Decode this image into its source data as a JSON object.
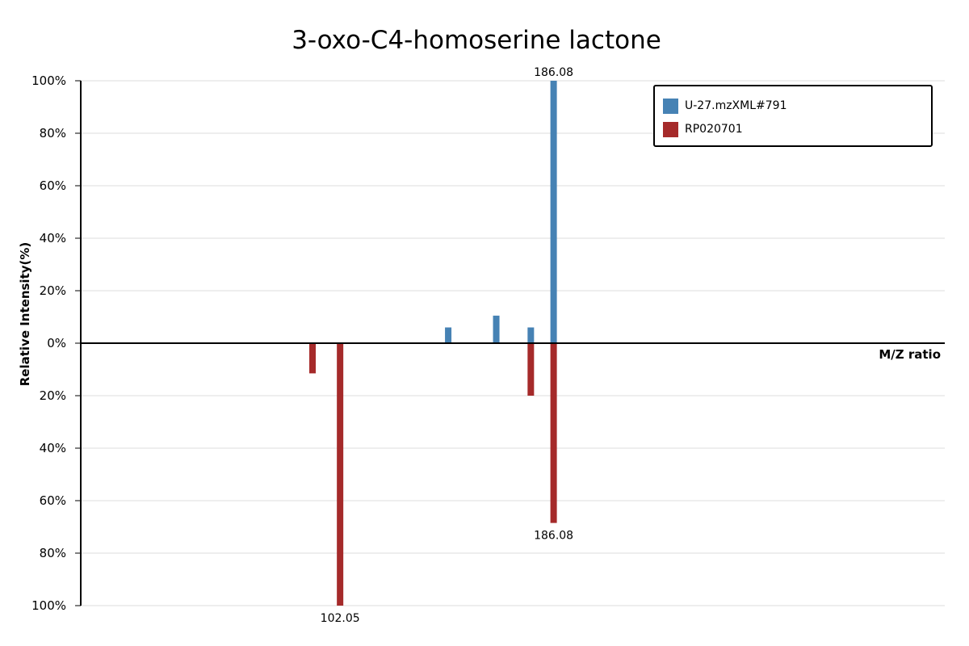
{
  "chart_data": {
    "type": "bar",
    "subtype": "mirror-mass-spectrum",
    "title": "3-oxo-C4-homoserine lactone",
    "xlabel": "M/Z ratio",
    "ylabel": "Relative Intensity(%)",
    "y_tick_labels_top": [
      "100%",
      "80%",
      "60%",
      "40%",
      "20%",
      "0%"
    ],
    "y_tick_labels_bottom": [
      "20%",
      "40%",
      "60%",
      "80%",
      "100%"
    ],
    "ylim": [
      -100,
      100
    ],
    "xlim": [
      0,
      340
    ],
    "grid": true,
    "legend_position": "top-right",
    "series": [
      {
        "name": "U-27.mzXML#791",
        "color": "#4682b4",
        "direction": "up",
        "peaks": [
          {
            "mz": 144.6,
            "intensity": 6
          },
          {
            "mz": 163.5,
            "intensity": 10.5
          },
          {
            "mz": 177.1,
            "intensity": 6
          },
          {
            "mz": 186.08,
            "intensity": 100,
            "label": "186.08"
          }
        ]
      },
      {
        "name": "RP020701",
        "color": "#a52a2a",
        "direction": "down",
        "peaks": [
          {
            "mz": 91.2,
            "intensity": 11.5
          },
          {
            "mz": 102.05,
            "intensity": 100,
            "label": "102.05"
          },
          {
            "mz": 177.1,
            "intensity": 20
          },
          {
            "mz": 186.08,
            "intensity": 68.5,
            "label": "186.08"
          }
        ]
      }
    ]
  }
}
